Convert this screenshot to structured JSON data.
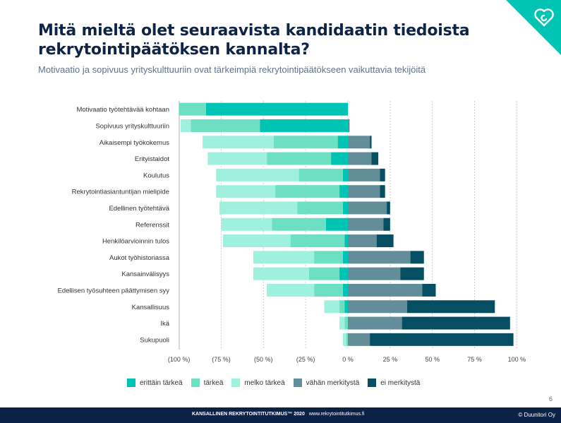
{
  "title": "Mitä mieltä olet seuraavista kandidaatin tiedoista rekrytointipäätöksen kannalta?",
  "subtitle": "Motivaatio ja sopivuus yrityskulttuuriin ovat tärkeimpiä rekrytointipäätökseen vaikuttavia tekijöitä",
  "page_number": "6",
  "footer": {
    "study": "KANSALLINEN REKRYTOINTITUTKIMUS™ 2020",
    "url": "www.rekrytointitutkimus.fi",
    "copyright": "© Duunitori Oy"
  },
  "logo": "heart-logo-icon",
  "chart_data": {
    "type": "bar",
    "orientation": "horizontal-diverging-stacked",
    "title": "Mitä mieltä olet seuraavista kandidaatin tiedoista rekrytointipäätöksen kannalta?",
    "xlabel": "",
    "ylabel": "",
    "xlim": [
      -100,
      100
    ],
    "x_ticks": [
      -100,
      -75,
      -50,
      -25,
      0,
      25,
      50,
      75,
      100
    ],
    "x_tick_labels": [
      "(100 %)",
      "(75 %)",
      "(50 %)",
      "(25 %)",
      "0 %",
      "25 %",
      "50 %",
      "75 %",
      "100 %"
    ],
    "grid": "vertical dashed",
    "legend_position": "bottom",
    "categories": [
      "Motivaatio työtehtävää kohtaan",
      "Sopivuus yrityskulttuuriin",
      "Aikaisempi työkokemus",
      "Erityistaidot",
      "Koulutus",
      "Rekrytointiasiantuntijan mielipide",
      "Edellinen työtehtävä",
      "Referenssit",
      "Henkilöarvioinnin tulos",
      "Aukot työhistoriassa",
      "Kansainvälisyys",
      "Edellisen työsuhteen päättymisen syy",
      "Kansallisuus",
      "Ikä",
      "Sukupuoli"
    ],
    "series": [
      {
        "name": "erittäin tärkeä",
        "side": "negative",
        "color": "#00c4b3",
        "values": [
          84,
          52,
          6,
          10,
          3,
          5,
          3,
          13,
          2,
          3,
          5,
          3,
          2,
          0,
          0
        ]
      },
      {
        "name": "tärkeä",
        "side": "negative",
        "color": "#6ddfc3",
        "values": [
          16,
          41,
          38,
          38,
          26,
          38,
          27,
          32,
          32,
          17,
          18,
          17,
          3,
          2,
          1
        ]
      },
      {
        "name": "melko tärkeä",
        "side": "negative",
        "color": "#a0f0e0",
        "values": [
          0,
          6,
          42,
          35,
          49,
          35,
          46,
          30,
          40,
          36,
          33,
          28,
          9,
          3,
          2
        ]
      },
      {
        "name": "vähän merkitystä",
        "side": "positive",
        "color": "#628d99",
        "values": [
          0,
          1,
          13,
          14,
          19,
          19,
          23,
          21,
          17,
          37,
          31,
          44,
          35,
          32,
          13
        ]
      },
      {
        "name": "ei merkitystä",
        "side": "positive",
        "color": "#064f63",
        "values": [
          0,
          0,
          1,
          4,
          3,
          3,
          2,
          4,
          10,
          8,
          14,
          8,
          52,
          64,
          85
        ]
      }
    ]
  }
}
